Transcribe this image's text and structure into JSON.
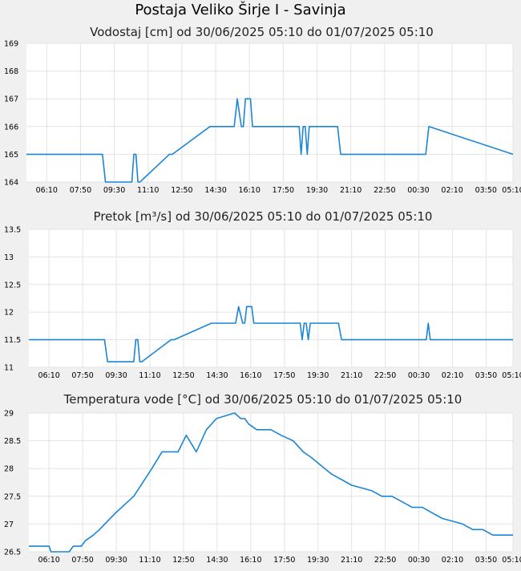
{
  "page": {
    "title": "Postaja Veliko Širje I - Savinja"
  },
  "colors": {
    "series": "#1a86d6",
    "grid": "#e3e3e3",
    "plot_bg": "#ffffff",
    "page_bg": "#f0f0f0"
  },
  "chart_data": [
    {
      "type": "line",
      "title": "Vodostaj [cm] od 30/06/2025 05:10 do 01/07/2025 05:10",
      "xlabel": "",
      "ylabel": "",
      "xlim": [
        0,
        24
      ],
      "ylim": [
        164,
        169
      ],
      "grid": true,
      "x_ticks": [
        "06:10",
        "07:50",
        "09:30",
        "11:10",
        "12:50",
        "14:30",
        "16:10",
        "17:50",
        "19:30",
        "21:10",
        "22:50",
        "00:30",
        "02:10",
        "03:50",
        "05:10"
      ],
      "y_ticks": [
        "164",
        "165",
        "166",
        "167",
        "168",
        "169"
      ],
      "series": [
        {
          "name": "Vodostaj",
          "x": [
            0,
            3.75,
            3.9,
            5.2,
            5.3,
            5.4,
            5.5,
            5.6,
            7.05,
            7.2,
            9.05,
            9.2,
            10.25,
            10.4,
            10.6,
            10.7,
            10.8,
            10.9,
            11.05,
            11.15,
            11.25,
            11.35,
            13.45,
            13.55,
            13.65,
            13.75,
            13.85,
            13.95,
            14.05,
            15.35,
            15.5,
            16.1,
            16.25,
            19.7,
            19.85,
            24
          ],
          "values": [
            165,
            165,
            164,
            164,
            165,
            165,
            164,
            164,
            165,
            165,
            166,
            166,
            166,
            167,
            166,
            166,
            167,
            167,
            167,
            166,
            166,
            166,
            166,
            165,
            166,
            166,
            165,
            166,
            166,
            166,
            165,
            165,
            165,
            165,
            166,
            165
          ]
        }
      ]
    },
    {
      "type": "line",
      "title": "Pretok [m³/s] od 30/06/2025 05:10 do 01/07/2025 05:10",
      "xlabel": "",
      "ylabel": "",
      "xlim": [
        0,
        24
      ],
      "ylim": [
        11,
        13.5
      ],
      "grid": true,
      "x_ticks": [
        "06:10",
        "07:50",
        "09:30",
        "11:10",
        "12:50",
        "14:30",
        "16:10",
        "17:50",
        "19:30",
        "21:10",
        "22:50",
        "00:30",
        "02:10",
        "03:50",
        "05:10"
      ],
      "y_ticks": [
        "11",
        "11.5",
        "12",
        "12.5",
        "13",
        "13.5"
      ],
      "series": [
        {
          "name": "Pretok",
          "x": [
            0,
            3.75,
            3.9,
            5.2,
            5.3,
            5.4,
            5.5,
            5.6,
            7.05,
            7.2,
            9.05,
            9.2,
            10.25,
            10.4,
            10.6,
            10.7,
            10.8,
            10.9,
            11.05,
            11.15,
            11.25,
            11.35,
            13.45,
            13.55,
            13.65,
            13.75,
            13.85,
            13.95,
            14.05,
            15.35,
            15.5,
            19.7,
            19.8,
            19.9,
            24
          ],
          "values": [
            11.5,
            11.5,
            11.1,
            11.1,
            11.5,
            11.5,
            11.1,
            11.1,
            11.5,
            11.5,
            11.8,
            11.8,
            11.8,
            12.1,
            11.8,
            11.8,
            12.1,
            12.1,
            12.1,
            11.8,
            11.8,
            11.8,
            11.8,
            11.5,
            11.8,
            11.8,
            11.5,
            11.8,
            11.8,
            11.8,
            11.5,
            11.5,
            11.8,
            11.5,
            11.5
          ]
        }
      ]
    },
    {
      "type": "line",
      "title": "Temperatura vode [°C] od 30/06/2025 05:10 do 01/07/2025 05:10",
      "xlabel": "",
      "ylabel": "",
      "xlim": [
        0,
        24
      ],
      "ylim": [
        26.5,
        29
      ],
      "grid": true,
      "x_ticks": [
        "06:10",
        "07:50",
        "09:30",
        "11:10",
        "12:50",
        "14:30",
        "16:10",
        "17:50",
        "19:30",
        "21:10",
        "22:50",
        "00:30",
        "02:10",
        "03:50",
        "05:10"
      ],
      "y_ticks": [
        "26.5",
        "27",
        "27.5",
        "28",
        "28.5",
        "29"
      ],
      "series": [
        {
          "name": "Temperatura vode",
          "x": [
            0,
            1,
            1.1,
            2,
            2.2,
            2.6,
            2.8,
            3.2,
            3.5,
            4.3,
            5.2,
            6.1,
            6.6,
            7.4,
            7.8,
            8.3,
            8.8,
            9.3,
            10.2,
            10.5,
            10.7,
            10.9,
            11.3,
            12,
            12.5,
            13.1,
            13.6,
            14,
            14.5,
            15,
            15.5,
            16,
            17,
            17.5,
            18,
            18.5,
            19,
            19.5,
            20,
            20.5,
            21,
            21.5,
            22,
            22.5,
            23,
            23.3,
            24
          ],
          "values": [
            26.6,
            26.6,
            26.5,
            26.5,
            26.6,
            26.6,
            26.7,
            26.8,
            26.9,
            27.2,
            27.5,
            28,
            28.3,
            28.3,
            28.6,
            28.3,
            28.7,
            28.9,
            29,
            28.9,
            28.9,
            28.8,
            28.7,
            28.7,
            28.6,
            28.5,
            28.3,
            28.2,
            28.05,
            27.9,
            27.8,
            27.7,
            27.6,
            27.5,
            27.5,
            27.4,
            27.3,
            27.3,
            27.2,
            27.1,
            27.05,
            27,
            26.9,
            26.9,
            26.8,
            26.8,
            26.8
          ]
        }
      ]
    }
  ]
}
